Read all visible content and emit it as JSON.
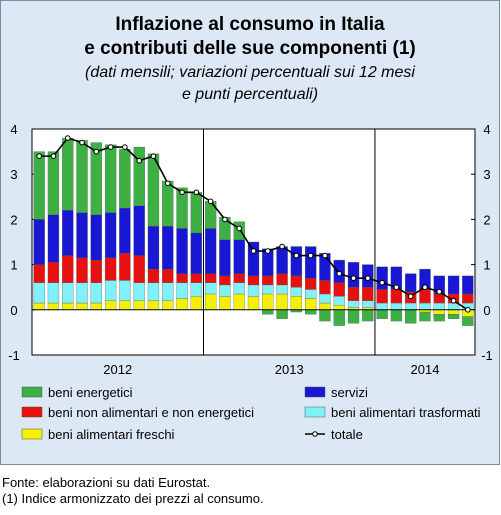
{
  "chart_data": {
    "type": "bar-line",
    "title": [
      "Inflazione al consumo in Italia",
      "e contributi delle sue componenti (1)"
    ],
    "subtitle": [
      "(dati mensili; variazioni percentuali sui 12 mesi",
      "e punti percentuali)"
    ],
    "categories": [
      null,
      null,
      null,
      null,
      null,
      null,
      null,
      null,
      null,
      null,
      null,
      null,
      null,
      null,
      null,
      null,
      null,
      null,
      null,
      null,
      null,
      null,
      null,
      null,
      null,
      null,
      null,
      null,
      null,
      null,
      null
    ],
    "x_groups": [
      "2012",
      "2013",
      "2014"
    ],
    "ylim": [
      -1,
      4
    ],
    "yticks": [
      -1,
      0,
      1,
      2,
      3,
      4
    ],
    "series": [
      {
        "name": "beni energetici",
        "color": "#3cb043",
        "values": [
          1.5,
          1.4,
          1.6,
          1.6,
          1.6,
          1.5,
          1.3,
          1.3,
          1.6,
          1.0,
          0.9,
          0.9,
          0.6,
          0.5,
          0.4,
          0.0,
          -0.1,
          -0.2,
          -0.05,
          -0.1,
          -0.25,
          -0.35,
          -0.3,
          -0.25,
          -0.2,
          -0.25,
          -0.3,
          -0.2,
          -0.15,
          -0.1,
          -0.2
        ]
      },
      {
        "name": "beni non alimentari e non energetici",
        "color": "#e8100f",
        "values": [
          0.4,
          0.45,
          0.6,
          0.55,
          0.5,
          0.5,
          0.6,
          0.6,
          0.3,
          0.3,
          0.2,
          0.2,
          0.2,
          0.2,
          0.2,
          0.2,
          0.2,
          0.25,
          0.25,
          0.25,
          0.3,
          0.3,
          0.3,
          0.3,
          0.3,
          0.3,
          0.25,
          0.3,
          0.2,
          0.2,
          0.2
        ]
      },
      {
        "name": "beni alimentari freschi",
        "color": "#f4f000",
        "values": [
          0.15,
          0.15,
          0.15,
          0.15,
          0.15,
          0.2,
          0.2,
          0.2,
          0.2,
          0.2,
          0.25,
          0.3,
          0.35,
          0.3,
          0.35,
          0.3,
          0.35,
          0.35,
          0.3,
          0.25,
          0.15,
          0.1,
          0.05,
          0.05,
          0.0,
          0.0,
          0.0,
          -0.05,
          -0.1,
          -0.1,
          -0.15
        ]
      },
      {
        "name": "servizi",
        "color": "#1717d4",
        "values": [
          1.0,
          1.05,
          1.0,
          1.0,
          1.0,
          1.0,
          1.0,
          1.1,
          0.95,
          0.95,
          1.0,
          0.9,
          1.0,
          0.8,
          0.75,
          0.75,
          0.6,
          0.6,
          0.65,
          0.7,
          0.6,
          0.5,
          0.55,
          0.5,
          0.5,
          0.5,
          0.4,
          0.45,
          0.4,
          0.4,
          0.4
        ]
      },
      {
        "name": "beni alimentari trasformati",
        "color": "#7ef1fb",
        "values": [
          0.45,
          0.45,
          0.45,
          0.45,
          0.45,
          0.45,
          0.45,
          0.4,
          0.4,
          0.4,
          0.35,
          0.3,
          0.25,
          0.25,
          0.25,
          0.25,
          0.2,
          0.2,
          0.2,
          0.2,
          0.2,
          0.2,
          0.15,
          0.15,
          0.15,
          0.15,
          0.15,
          0.15,
          0.15,
          0.15,
          0.15
        ]
      },
      {
        "name": "totale",
        "color": "#000000",
        "values": [
          3.4,
          3.4,
          3.8,
          3.7,
          3.5,
          3.6,
          3.6,
          3.3,
          3.4,
          2.8,
          2.6,
          2.6,
          2.4,
          2.0,
          1.8,
          1.3,
          1.3,
          1.4,
          1.2,
          1.2,
          1.2,
          0.8,
          0.7,
          0.7,
          0.6,
          0.5,
          0.3,
          0.5,
          0.4,
          0.2,
          0.0
        ]
      }
    ],
    "notes": [
      "Fonte: elaborazioni su dati Eurostat.",
      "(1) Indice armonizzato dei prezzi al consumo."
    ]
  }
}
